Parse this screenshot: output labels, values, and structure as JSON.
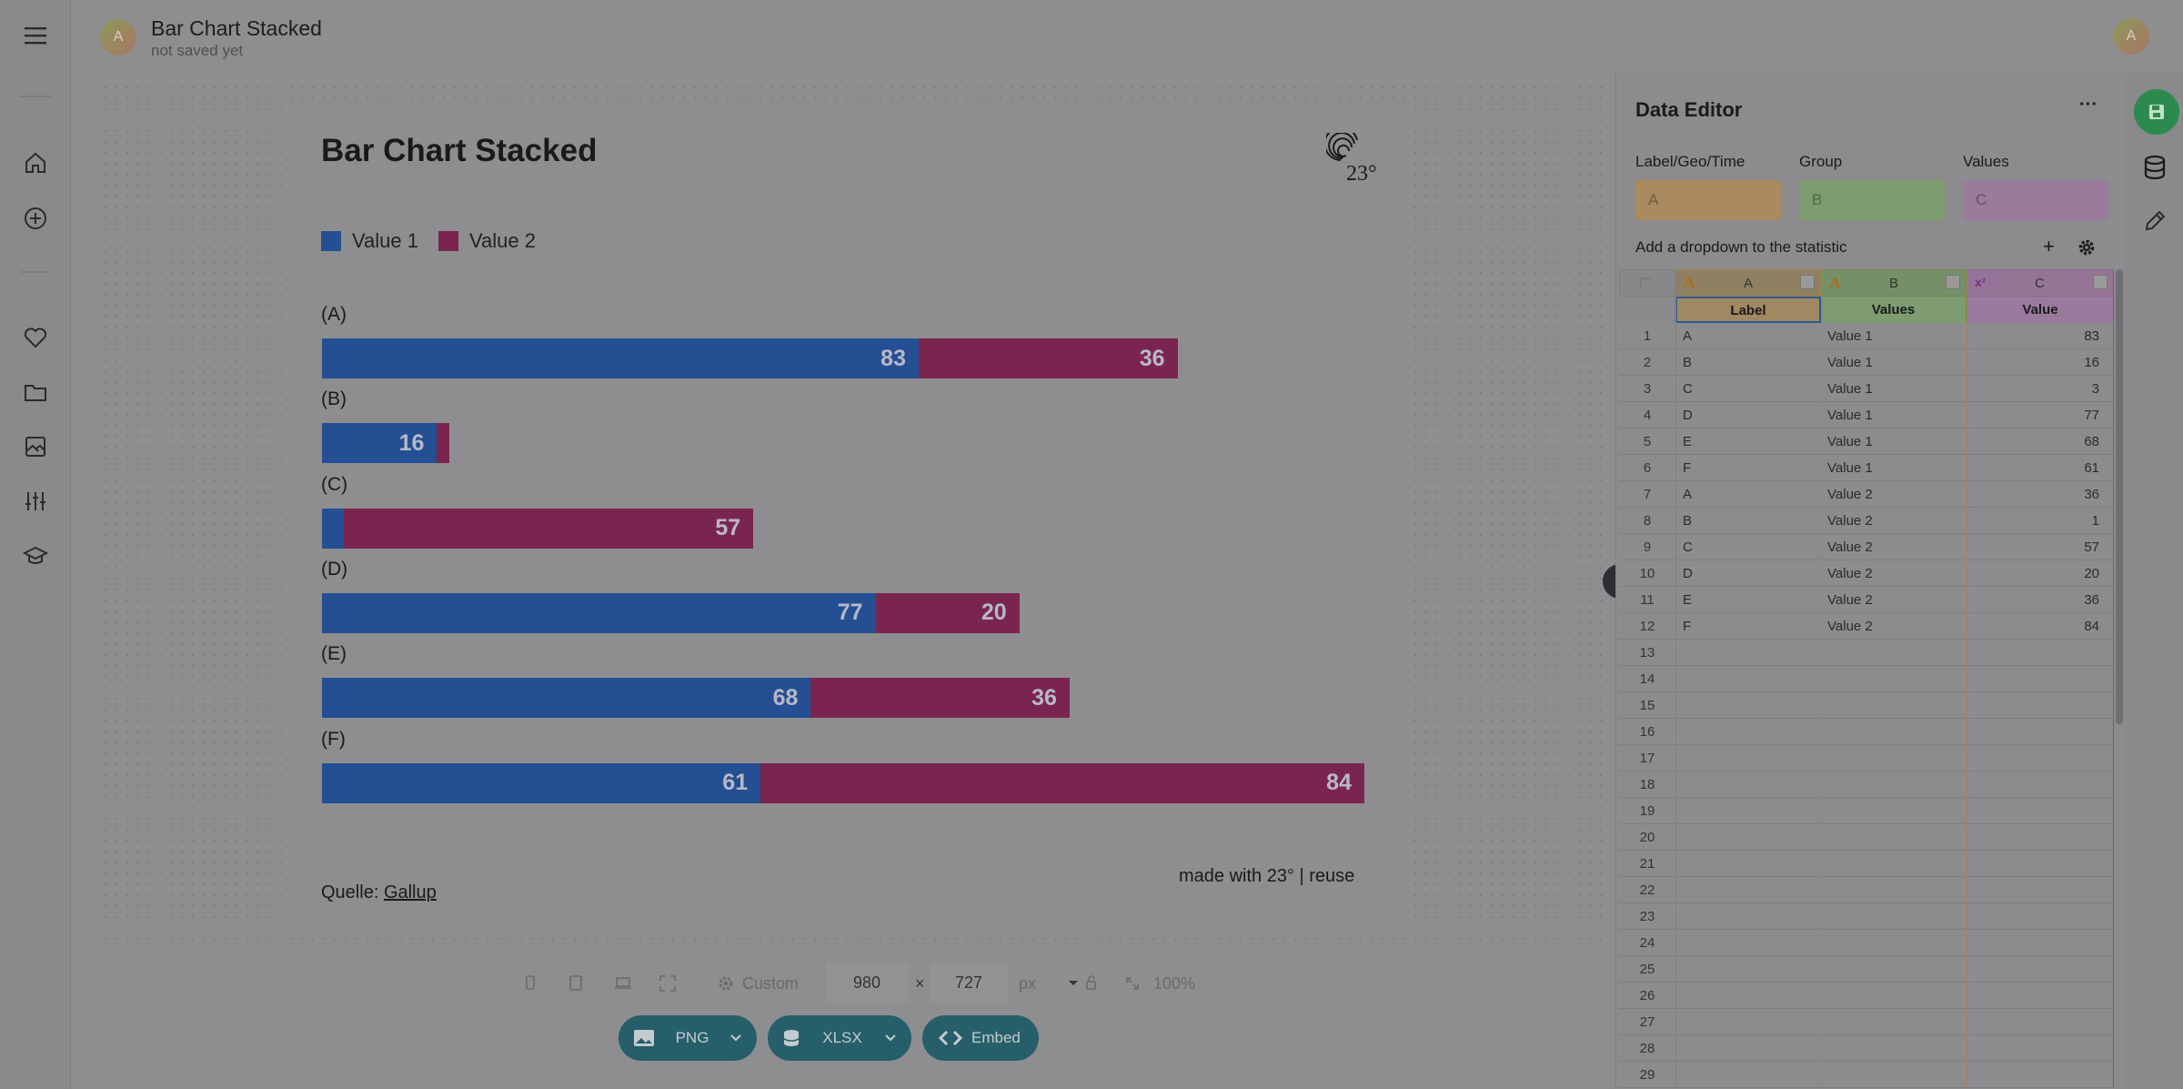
{
  "header": {
    "title": "Bar Chart Stacked",
    "subtitle": "not saved yet",
    "avatar_initial": "A",
    "user_initial": "A"
  },
  "sidebar": {
    "icons": [
      "menu-icon",
      "home-icon",
      "plus-circle-icon",
      "heart-icon",
      "folder-icon",
      "image-icon",
      "sliders-icon",
      "graduation-cap-icon"
    ]
  },
  "chart": {
    "title": "Bar Chart Stacked",
    "legend": [
      "Value 1",
      "Value 2"
    ],
    "source_prefix": "Quelle:",
    "source_link": "Gallup",
    "madewith": "made with 23° | reuse",
    "logo_text": "23°"
  },
  "chart_data": {
    "type": "bar",
    "orientation": "horizontal",
    "stacked": true,
    "title": "Bar Chart Stacked",
    "categories": [
      "(A)",
      "(B)",
      "(C)",
      "(D)",
      "(E)",
      "(F)"
    ],
    "series": [
      {
        "name": "Value 1",
        "values": [
          83,
          16,
          3,
          77,
          68,
          61
        ],
        "color": "#244f92"
      },
      {
        "name": "Value 2",
        "values": [
          36,
          1,
          57,
          20,
          36,
          84
        ],
        "color": "#7a2550"
      }
    ],
    "xlim": [
      0,
      145
    ],
    "legend_position": "top-left",
    "grid": false
  },
  "sizebar": {
    "preset": "Custom",
    "width": "980",
    "times": "×",
    "height": "727",
    "unit": "px",
    "zoom": "100%"
  },
  "export": {
    "png": "PNG",
    "xlsx": "XLSX",
    "embed": "Embed"
  },
  "editor": {
    "title": "Data Editor",
    "more": "···",
    "label_field": {
      "label": "Label/Geo/Time",
      "value": "A",
      "color": "#a98a5e"
    },
    "group_field": {
      "label": "Group",
      "value": "B",
      "color": "#7d9d6e"
    },
    "values_field": {
      "label": "Values",
      "value": "C",
      "color": "#9a7b9c"
    },
    "dropdown_label": "Add a dropdown to the statistic",
    "plus": "+",
    "columns": [
      {
        "letter": "A",
        "type": "A",
        "header": "Label"
      },
      {
        "letter": "B",
        "type": "A",
        "header": "Values"
      },
      {
        "letter": "C",
        "type": "x²",
        "header": "Value"
      }
    ],
    "rows": [
      {
        "n": "1",
        "a": "A",
        "b": "Value 1",
        "c": "83"
      },
      {
        "n": "2",
        "a": "B",
        "b": "Value 1",
        "c": "16"
      },
      {
        "n": "3",
        "a": "C",
        "b": "Value 1",
        "c": "3"
      },
      {
        "n": "4",
        "a": "D",
        "b": "Value 1",
        "c": "77"
      },
      {
        "n": "5",
        "a": "E",
        "b": "Value 1",
        "c": "68"
      },
      {
        "n": "6",
        "a": "F",
        "b": "Value 1",
        "c": "61"
      },
      {
        "n": "7",
        "a": "A",
        "b": "Value 2",
        "c": "36"
      },
      {
        "n": "8",
        "a": "B",
        "b": "Value 2",
        "c": "1"
      },
      {
        "n": "9",
        "a": "C",
        "b": "Value 2",
        "c": "57"
      },
      {
        "n": "10",
        "a": "D",
        "b": "Value 2",
        "c": "20"
      },
      {
        "n": "11",
        "a": "E",
        "b": "Value 2",
        "c": "36"
      },
      {
        "n": "12",
        "a": "F",
        "b": "Value 2",
        "c": "84"
      },
      {
        "n": "13",
        "a": "",
        "b": "",
        "c": ""
      },
      {
        "n": "14",
        "a": "",
        "b": "",
        "c": ""
      },
      {
        "n": "15",
        "a": "",
        "b": "",
        "c": ""
      },
      {
        "n": "16",
        "a": "",
        "b": "",
        "c": ""
      },
      {
        "n": "17",
        "a": "",
        "b": "",
        "c": ""
      },
      {
        "n": "18",
        "a": "",
        "b": "",
        "c": ""
      },
      {
        "n": "19",
        "a": "",
        "b": "",
        "c": ""
      },
      {
        "n": "20",
        "a": "",
        "b": "",
        "c": ""
      },
      {
        "n": "21",
        "a": "",
        "b": "",
        "c": ""
      },
      {
        "n": "22",
        "a": "",
        "b": "",
        "c": ""
      },
      {
        "n": "23",
        "a": "",
        "b": "",
        "c": ""
      },
      {
        "n": "24",
        "a": "",
        "b": "",
        "c": ""
      },
      {
        "n": "25",
        "a": "",
        "b": "",
        "c": ""
      },
      {
        "n": "26",
        "a": "",
        "b": "",
        "c": ""
      },
      {
        "n": "27",
        "a": "",
        "b": "",
        "c": ""
      },
      {
        "n": "28",
        "a": "",
        "b": "",
        "c": ""
      },
      {
        "n": "29",
        "a": "",
        "b": "",
        "c": ""
      }
    ]
  },
  "right_rail": {
    "icons": [
      "save-icon",
      "database-icon",
      "pencil-icon"
    ],
    "save_color": "#2d8a4e"
  }
}
